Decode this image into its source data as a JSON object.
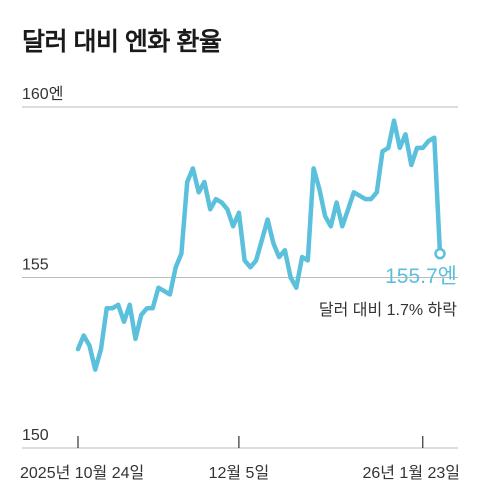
{
  "title": "달러 대비 엔화 환율",
  "colors": {
    "line": "#5bc0dc",
    "grid": "#bbbbbb",
    "text": "#333333",
    "accent": "#5bc0dc"
  },
  "chart_data": {
    "type": "line",
    "title": "달러 대비 엔화 환율",
    "ylim": [
      150,
      160
    ],
    "y_ticks": [
      {
        "value": 160,
        "label": "160엔"
      },
      {
        "value": 155,
        "label": "155"
      },
      {
        "value": 150,
        "label": "150"
      }
    ],
    "x_ticks": [
      {
        "index": 0,
        "label": "2025년 10월 24일"
      },
      {
        "index": 28,
        "label": "12월 5일"
      },
      {
        "index": 60,
        "label": "26년 1월 23일"
      }
    ],
    "grid": true,
    "series": [
      {
        "values": [
          152.9,
          153.3,
          153.0,
          152.3,
          152.9,
          154.1,
          154.1,
          154.2,
          153.7,
          154.2,
          153.2,
          153.9,
          154.1,
          154.1,
          154.7,
          154.6,
          154.5,
          155.3,
          155.7,
          157.8,
          158.2,
          157.5,
          157.8,
          157.0,
          157.3,
          157.2,
          157.0,
          156.5,
          156.9,
          155.5,
          155.3,
          155.5,
          156.1,
          156.7,
          156.0,
          155.6,
          155.8,
          155.0,
          154.7,
          155.6,
          155.5,
          158.2,
          157.6,
          156.8,
          156.5,
          157.2,
          156.5,
          157.0,
          157.5,
          157.4,
          157.3,
          157.3,
          157.5,
          158.7,
          158.8,
          159.6,
          158.8,
          159.2,
          158.3,
          158.8,
          158.8,
          159.0,
          159.1,
          155.7
        ]
      }
    ],
    "annotations": [
      {
        "text": "155.7엔"
      },
      {
        "text": "달러 대비 1.7% 하락"
      }
    ]
  }
}
